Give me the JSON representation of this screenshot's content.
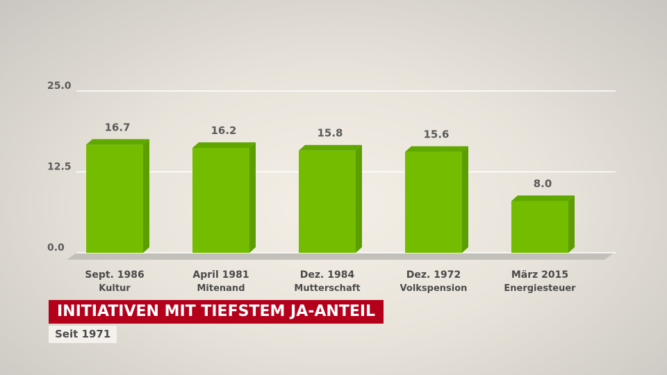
{
  "title": "INITIATIVEN MIT TIEFSTEM JA-ANTEIL",
  "subtitle": "Seit 1971",
  "colors": {
    "bar_front": "#74bc00",
    "bar_top": "#5fa800",
    "bar_side": "#5c9d00",
    "title_bg": "#b5001c",
    "gridline": "#ffffff"
  },
  "chart_data": {
    "type": "bar",
    "categories": [
      {
        "date": "Sept. 1986",
        "name": "Kultur"
      },
      {
        "date": "April 1981",
        "name": "Mitenand"
      },
      {
        "date": "Dez. 1984",
        "name": "Mutterschaft"
      },
      {
        "date": "Dez. 1972",
        "name": "Volkspension"
      },
      {
        "date": "März 2015",
        "name": "Energiesteuer"
      }
    ],
    "values": [
      16.7,
      16.2,
      15.8,
      15.6,
      8.0
    ],
    "value_labels": [
      "16.7",
      "16.2",
      "15.8",
      "15.6",
      "8.0"
    ],
    "yticks": [
      "0.0",
      "12.5",
      "25.0"
    ],
    "ylim": [
      0,
      25
    ],
    "grid": true
  }
}
